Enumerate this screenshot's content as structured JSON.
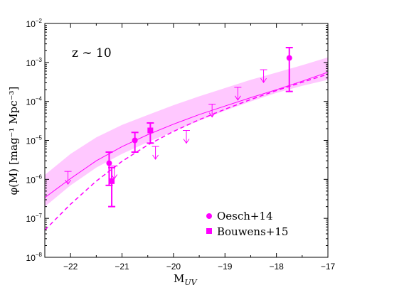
{
  "chart_data": {
    "type": "scatter",
    "title": "",
    "annotation": "z ∼ 10",
    "xlabel": {
      "main": "M",
      "sub": "UV"
    },
    "ylabel": "φ(M) [mag⁻¹ Mpc⁻³]",
    "xlim": [
      -22.5,
      -17
    ],
    "ylim_log10": [
      -8,
      -2
    ],
    "y_scale": "log",
    "x_ticks": [
      -22,
      -21,
      -20,
      -19,
      -18,
      -17
    ],
    "y_tick_exponents": [
      -8,
      -7,
      -6,
      -5,
      -4,
      -3,
      -2
    ],
    "grid": false,
    "legend_position": "bottom-right",
    "colors": {
      "accent": "#ff00ff",
      "band": "#ffc8ff",
      "axis": "#000000"
    },
    "band": {
      "x": [
        -22.5,
        -22.0,
        -21.5,
        -21.0,
        -20.5,
        -20.0,
        -19.5,
        -19.0,
        -18.5,
        -18.0,
        -17.5,
        -17.0
      ],
      "lower": [
        2e-07,
        7e-07,
        2e-06,
        4.5e-06,
        9e-06,
        1.7e-05,
        3.2e-05,
        5.8e-05,
        0.0001,
        0.000165,
        0.00025,
        0.00036
      ],
      "upper": [
        1.3e-06,
        4.5e-06,
        1.2e-05,
        2.5e-05,
        4.5e-05,
        8e-05,
        0.000135,
        0.00022,
        0.00036,
        0.00055,
        0.00085,
        0.00135
      ]
    },
    "solid_curve": {
      "x": [
        -22.5,
        -22.0,
        -21.5,
        -21.0,
        -20.5,
        -20.0,
        -19.5,
        -19.0,
        -18.5,
        -18.0,
        -17.5,
        -17.0
      ],
      "y": [
        3.4e-07,
        1.05e-06,
        3e-06,
        6.9e-06,
        1.4e-05,
        2.6e-05,
        4.6e-05,
        7.6e-05,
        0.000125,
        0.0002,
        0.00033,
        0.00056
      ]
    },
    "dashed_curve": {
      "x": [
        -22.5,
        -22.0,
        -21.5,
        -21.0,
        -20.5,
        -20.0,
        -19.5,
        -19.0,
        -18.5,
        -18.0,
        -17.5,
        -17.0
      ],
      "y": [
        5e-08,
        2.3e-07,
        9e-07,
        2.9e-06,
        7.6e-06,
        1.7e-05,
        3.4e-05,
        6.3e-05,
        0.000112,
        0.00019,
        0.00031,
        0.0005
      ]
    },
    "upper_limits": [
      {
        "x": -22.05,
        "y": 1.6e-06
      },
      {
        "x": -21.15,
        "y": 2.2e-06
      },
      {
        "x": -20.35,
        "y": 7e-06
      },
      {
        "x": -19.75,
        "y": 1.8e-05
      },
      {
        "x": -19.25,
        "y": 8.5e-05
      },
      {
        "x": -18.75,
        "y": 0.00023
      },
      {
        "x": -18.25,
        "y": 0.00065
      }
    ],
    "series": [
      {
        "name": "Oesch+14",
        "marker": "circle",
        "points": [
          {
            "x": -21.25,
            "y": 2.6e-06,
            "lo": 7e-07,
            "hi": 5e-06
          },
          {
            "x": -20.75,
            "y": 1e-05,
            "lo": 5e-06,
            "hi": 1.6e-05
          },
          {
            "x": -17.75,
            "y": 0.0013,
            "lo": 0.00018,
            "hi": 0.0024
          }
        ]
      },
      {
        "name": "Bouwens+15",
        "marker": "square",
        "points": [
          {
            "x": -21.2,
            "y": 9e-07,
            "lo": 2e-07,
            "hi": 2e-06
          },
          {
            "x": -20.45,
            "y": 1.8e-05,
            "lo": 8.5e-06,
            "hi": 2.8e-05
          }
        ]
      }
    ]
  }
}
